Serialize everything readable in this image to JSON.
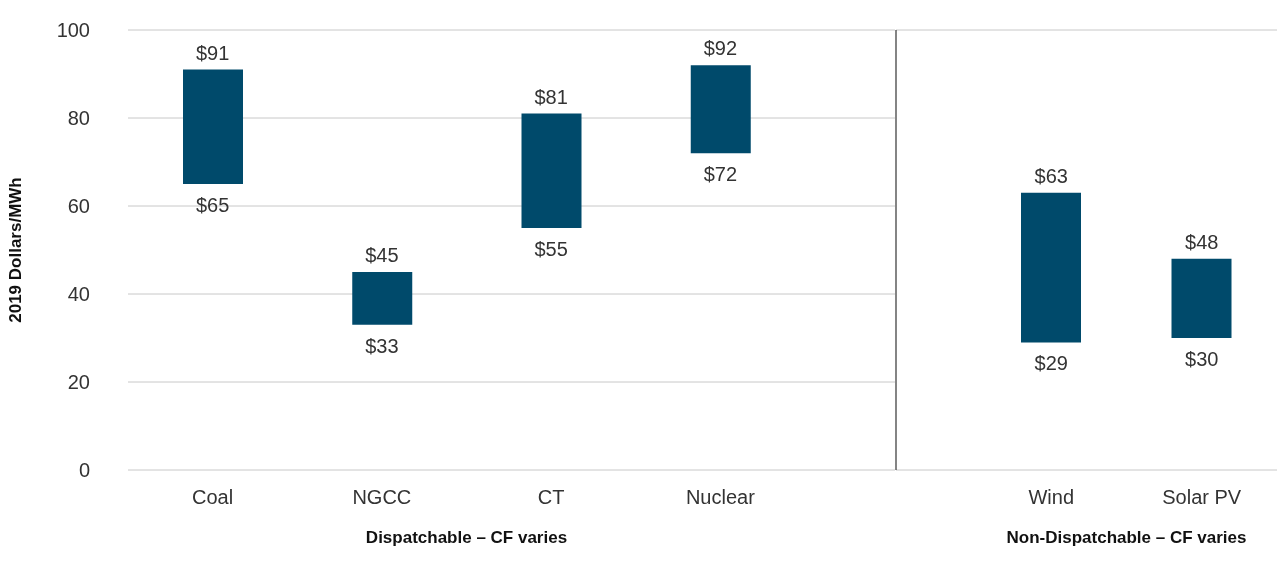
{
  "chart_data": [
    {
      "type": "bar",
      "ylabel": "2019 Dollars/MWh",
      "categories": [
        "Coal",
        "NGCC",
        "CT",
        "Nuclear"
      ],
      "values": [
        26,
        12,
        26,
        20
      ],
      "base": [
        65,
        33,
        55,
        72
      ],
      "color": "#004a6b",
      "ylim": [
        0,
        100
      ],
      "yticks": [
        0,
        20,
        40,
        60,
        80,
        100
      ],
      "grid": "y",
      "annotations": [
        {
          "text": "$91",
          "x": "Coal",
          "y": 91
        },
        {
          "text": "$65",
          "x": "Coal",
          "y": 65
        },
        {
          "text": "$45",
          "x": "NGCC",
          "y": 45
        },
        {
          "text": "$33",
          "x": "NGCC",
          "y": 33
        },
        {
          "text": "$81",
          "x": "CT",
          "y": 81
        },
        {
          "text": "$55",
          "x": "CT",
          "y": 55
        },
        {
          "text": "$92",
          "x": "Nuclear",
          "y": 92
        },
        {
          "text": "$72",
          "x": "Nuclear",
          "y": 72
        },
        "Dispatchable –  CF varies"
      ]
    },
    {
      "type": "bar",
      "categories": [
        "Wind",
        "Solar PV"
      ],
      "values": [
        34,
        18
      ],
      "base": [
        29,
        30
      ],
      "color": "#004a6b",
      "ylim": [
        0,
        100
      ],
      "yticks": [
        0,
        20,
        40,
        60,
        80,
        100
      ],
      "grid": "y",
      "tick_labels": "x",
      "annotations": [
        {
          "text": "$63",
          "x": "Wind",
          "y": 63
        },
        {
          "text": "$29",
          "x": "Wind",
          "y": 29
        },
        {
          "text": "$48",
          "x": "Solar PV",
          "y": 48
        },
        {
          "text": "$30",
          "x": "Solar PV",
          "y": 30
        },
        "Non-Dispatchable –  CF varies"
      ]
    }
  ]
}
